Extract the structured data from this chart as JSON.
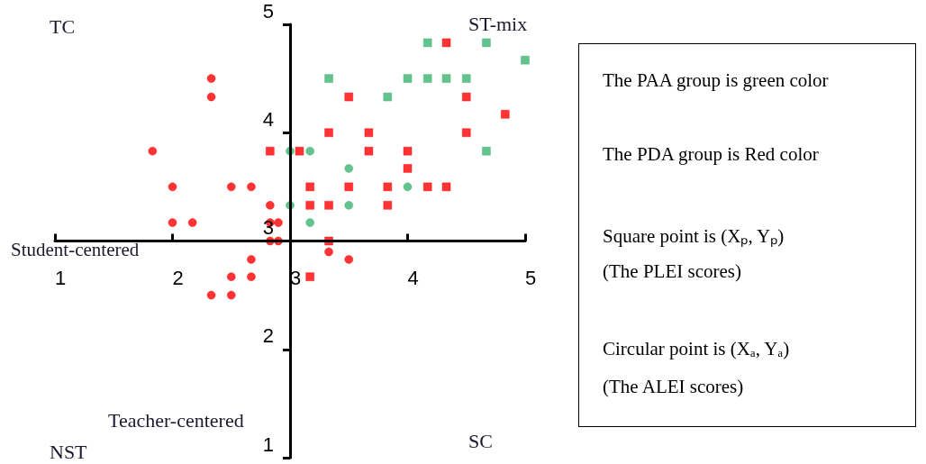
{
  "chart_data": [
    {
      "type": "scatter",
      "xlabel": "Student-centered",
      "ylabel": "Teacher-centered",
      "annotations": [
        "TC",
        "ST-mix",
        "NST",
        "SC"
      ],
      "xlim": [
        1,
        5
      ],
      "ylim": [
        1,
        5
      ],
      "xticks": [
        1,
        2,
        3,
        4,
        5
      ],
      "yticks": [
        1,
        2,
        3,
        4,
        5
      ],
      "grid": false,
      "series": [
        {
          "color": "#ff0000",
          "marker": "square",
          "x": [
            4.33,
            3.5,
            4.5,
            4.83,
            3.33,
            3.67,
            4.5,
            2.83,
            3.08,
            3.67,
            4.0,
            4.0,
            3.17,
            3.5,
            3.83,
            4.17,
            4.33,
            3.17,
            3.33,
            3.83,
            3.33,
            3.17
          ],
          "values": [
            4.83,
            4.33,
            4.33,
            4.17,
            4.0,
            4.0,
            4.0,
            3.83,
            3.83,
            3.83,
            3.83,
            3.67,
            3.5,
            3.5,
            3.5,
            3.5,
            3.5,
            3.33,
            3.33,
            3.33,
            3.0,
            2.67
          ]
        },
        {
          "color": "#3cb371",
          "marker": "square",
          "x": [
            4.17,
            4.67,
            5.0,
            3.33,
            4.0,
            4.17,
            4.33,
            4.5,
            3.83,
            4.67
          ],
          "values": [
            4.83,
            4.83,
            4.67,
            4.5,
            4.5,
            4.5,
            4.5,
            4.5,
            4.33,
            3.83
          ]
        },
        {
          "color": "#3cb371",
          "marker": "circle",
          "x": [
            3.0,
            3.17,
            3.5,
            4.0,
            3.0,
            3.5,
            3.17
          ],
          "values": [
            3.83,
            3.83,
            3.67,
            3.5,
            3.33,
            3.33,
            3.17
          ]
        },
        {
          "color": "#ff0000",
          "marker": "circle",
          "x": [
            2.33,
            2.33,
            1.83,
            2.0,
            2.5,
            2.67,
            2.83,
            2.0,
            2.17,
            2.83,
            2.9,
            2.83,
            2.9,
            3.33,
            3.5,
            2.67,
            2.5,
            2.67,
            2.33,
            2.5
          ],
          "values": [
            4.5,
            4.33,
            3.83,
            3.5,
            3.5,
            3.5,
            3.33,
            3.17,
            3.17,
            3.17,
            3.17,
            3.0,
            3.0,
            2.9,
            2.83,
            2.83,
            2.67,
            2.67,
            2.5,
            2.5
          ]
        }
      ]
    },
    {
      "type": "other",
      "annotations": [
        "The PAA group is green color",
        "The PDA group is Red color",
        "Square point is (Xₚ, Yₚ)",
        "(The PLEI scores)",
        "Circular point is (Xₐ, Yₐ)",
        "(The ALEI scores)"
      ]
    }
  ]
}
